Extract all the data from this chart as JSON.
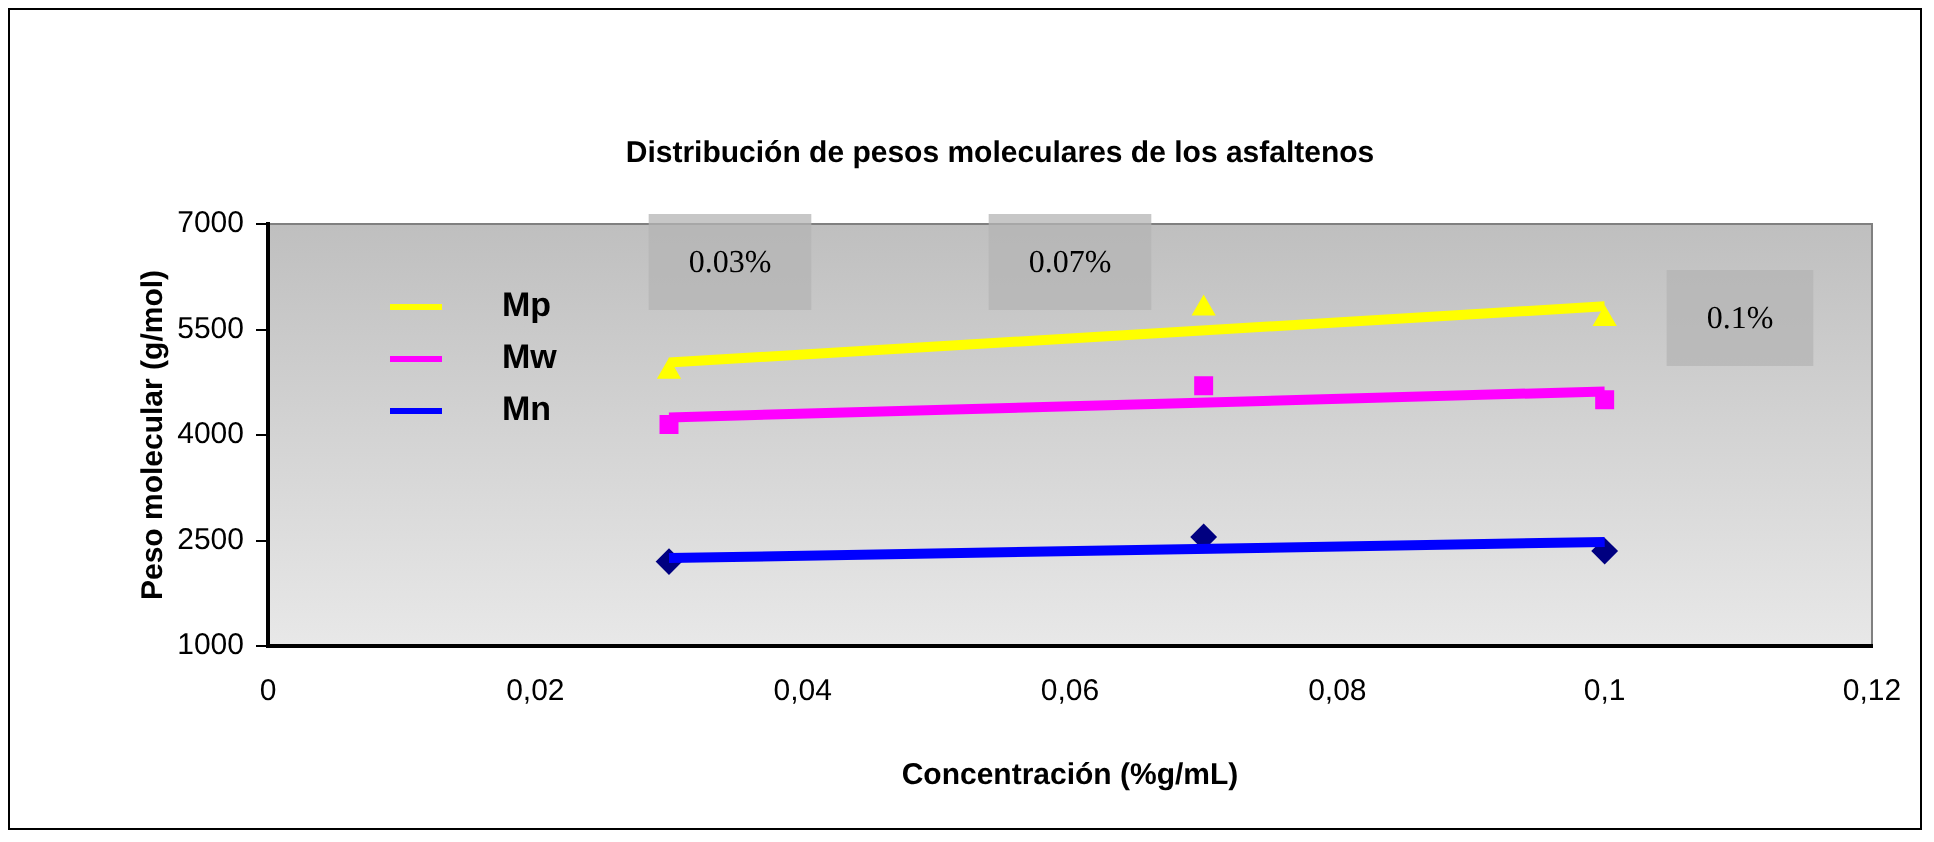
{
  "chart_data": {
    "type": "scatter",
    "title": "Distribución de pesos moleculares de los asfaltenos",
    "xlabel": "Concentración (%g/mL)",
    "ylabel": "Peso molecular (g/mol)",
    "xlim": [
      0,
      0.12
    ],
    "xticks": [
      0,
      {
        "value": 0.02,
        "label": "0,02"
      },
      {
        "value": 0.04,
        "label": "0,04"
      },
      {
        "value": 0.06,
        "label": "0,06"
      },
      {
        "value": 0.08,
        "label": "0,08"
      },
      {
        "value": 0.1,
        "label": "0,1"
      },
      {
        "value": 0.12,
        "label": "0,12"
      }
    ],
    "ylim": [
      1000,
      7000
    ],
    "yticks": [
      1000,
      2500,
      4000,
      5500,
      7000
    ],
    "grid": false,
    "legend": "top left",
    "annotations": [
      "0.03%",
      "0.07%",
      "0.1%"
    ],
    "series": [
      {
        "name": "Mp",
        "type": "line",
        "color": "#ffff00",
        "marker": "none",
        "x": [
          0.03,
          0.1
        ],
        "values": [
          5030,
          5830
        ]
      },
      {
        "name": "Mw",
        "type": "line",
        "color": "#ff00ff",
        "marker": "none",
        "x": [
          0.03,
          0.1
        ],
        "values": [
          4250,
          4620
        ]
      },
      {
        "name": "Mn",
        "type": "line",
        "color": "#0000ff",
        "marker": "none",
        "x": [
          0.03,
          0.1
        ],
        "values": [
          2250,
          2480
        ]
      },
      {
        "type": "scatter",
        "color": "#ffff00",
        "marker": "triangle",
        "x": [
          0.03,
          0.07,
          0.1
        ],
        "values": [
          4900,
          5800,
          5650
        ]
      },
      {
        "type": "scatter",
        "color": "#ff00ff",
        "marker": "square",
        "x": [
          0.03,
          0.07,
          0.1
        ],
        "values": [
          4150,
          4700,
          4500
        ]
      },
      {
        "type": "scatter",
        "color": "#000080",
        "marker": "diamond",
        "x": [
          0.03,
          0.07,
          0.1
        ],
        "values": [
          2200,
          2550,
          2350
        ]
      }
    ]
  }
}
